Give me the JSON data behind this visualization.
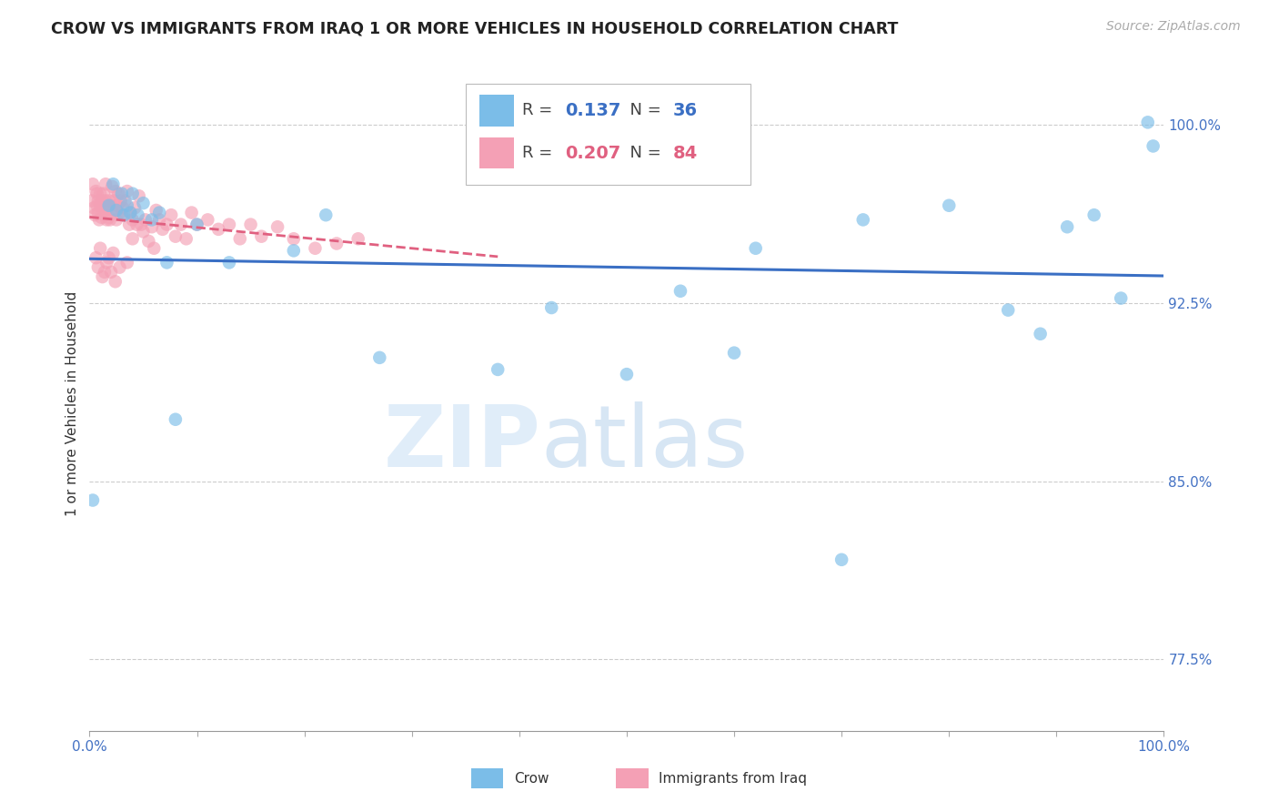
{
  "title": "CROW VS IMMIGRANTS FROM IRAQ 1 OR MORE VEHICLES IN HOUSEHOLD CORRELATION CHART",
  "source": "Source: ZipAtlas.com",
  "ylabel": "1 or more Vehicles in Household",
  "legend_crow": "Crow",
  "legend_iraq": "Immigrants from Iraq",
  "crow_R": 0.137,
  "crow_N": 36,
  "iraq_R": 0.207,
  "iraq_N": 84,
  "xlim": [
    0.0,
    1.0
  ],
  "ylim": [
    0.745,
    1.02
  ],
  "yticks": [
    0.775,
    0.85,
    0.925,
    1.0
  ],
  "yticklabels": [
    "77.5%",
    "85.0%",
    "92.5%",
    "100.0%"
  ],
  "crow_color": "#7bbde8",
  "iraq_color": "#f4a0b5",
  "crow_line_color": "#3a6fc4",
  "iraq_line_color": "#e06080",
  "crow_x": [
    0.003,
    0.018,
    0.022,
    0.025,
    0.03,
    0.032,
    0.035,
    0.038,
    0.04,
    0.045,
    0.05,
    0.058,
    0.065,
    0.072,
    0.08,
    0.1,
    0.13,
    0.19,
    0.22,
    0.27,
    0.38,
    0.43,
    0.55,
    0.6,
    0.62,
    0.72,
    0.8,
    0.855,
    0.885,
    0.91,
    0.935,
    0.96,
    0.99,
    0.985,
    0.5,
    0.7
  ],
  "crow_y": [
    0.842,
    0.966,
    0.975,
    0.964,
    0.971,
    0.962,
    0.966,
    0.963,
    0.971,
    0.962,
    0.967,
    0.96,
    0.963,
    0.942,
    0.876,
    0.958,
    0.942,
    0.947,
    0.962,
    0.902,
    0.897,
    0.923,
    0.93,
    0.904,
    0.948,
    0.96,
    0.966,
    0.922,
    0.912,
    0.957,
    0.962,
    0.927,
    0.991,
    1.001,
    0.895,
    0.817
  ],
  "iraq_x": [
    0.002,
    0.003,
    0.004,
    0.005,
    0.006,
    0.007,
    0.007,
    0.008,
    0.008,
    0.009,
    0.01,
    0.01,
    0.011,
    0.012,
    0.013,
    0.013,
    0.014,
    0.015,
    0.015,
    0.016,
    0.017,
    0.018,
    0.018,
    0.019,
    0.02,
    0.021,
    0.022,
    0.023,
    0.024,
    0.025,
    0.026,
    0.027,
    0.028,
    0.029,
    0.03,
    0.031,
    0.033,
    0.035,
    0.037,
    0.038,
    0.04,
    0.042,
    0.044,
    0.046,
    0.048,
    0.05,
    0.052,
    0.055,
    0.058,
    0.062,
    0.065,
    0.068,
    0.072,
    0.076,
    0.08,
    0.085,
    0.09,
    0.095,
    0.1,
    0.11,
    0.12,
    0.13,
    0.14,
    0.15,
    0.16,
    0.175,
    0.19,
    0.21,
    0.23,
    0.25,
    0.008,
    0.012,
    0.016,
    0.02,
    0.024,
    0.028,
    0.035,
    0.018,
    0.022,
    0.014,
    0.006,
    0.01,
    0.04,
    0.06
  ],
  "iraq_y": [
    0.968,
    0.975,
    0.965,
    0.962,
    0.972,
    0.966,
    0.971,
    0.963,
    0.968,
    0.96,
    0.966,
    0.971,
    0.961,
    0.968,
    0.965,
    0.971,
    0.962,
    0.968,
    0.975,
    0.96,
    0.965,
    0.961,
    0.968,
    0.96,
    0.966,
    0.974,
    0.963,
    0.968,
    0.972,
    0.96,
    0.966,
    0.971,
    0.963,
    0.968,
    0.962,
    0.965,
    0.968,
    0.972,
    0.958,
    0.963,
    0.96,
    0.965,
    0.958,
    0.97,
    0.958,
    0.955,
    0.96,
    0.951,
    0.957,
    0.964,
    0.96,
    0.956,
    0.958,
    0.962,
    0.953,
    0.958,
    0.952,
    0.963,
    0.958,
    0.96,
    0.956,
    0.958,
    0.952,
    0.958,
    0.953,
    0.957,
    0.952,
    0.948,
    0.95,
    0.952,
    0.94,
    0.936,
    0.942,
    0.938,
    0.934,
    0.94,
    0.942,
    0.944,
    0.946,
    0.938,
    0.944,
    0.948,
    0.952,
    0.948
  ]
}
